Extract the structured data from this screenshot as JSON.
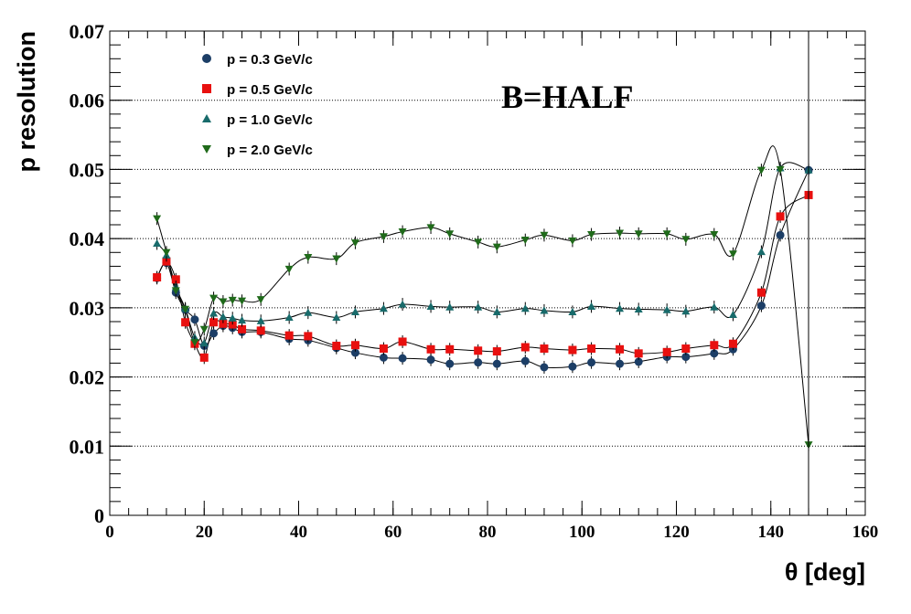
{
  "chart_data": {
    "type": "scatter",
    "title": "",
    "xlabel": "θ [deg]",
    "ylabel": "p resolution",
    "xlim": [
      0,
      160
    ],
    "ylim": [
      0,
      0.07
    ],
    "x_ticks": [
      0,
      20,
      40,
      60,
      80,
      100,
      120,
      140,
      160
    ],
    "y_ticks": [
      0,
      0.01,
      0.02,
      0.03,
      0.04,
      0.05,
      0.06,
      0.07
    ],
    "x_tick_labels": [
      "0",
      "20",
      "40",
      "60",
      "80",
      "100",
      "120",
      "140",
      "160"
    ],
    "y_tick_labels": [
      "0",
      "0.01",
      "0.02",
      "0.03",
      "0.04",
      "0.05",
      "0.06",
      "0.07"
    ],
    "grid": "horizontal dotted",
    "legend_position": "top-left",
    "annotation": "B=HALF",
    "series": [
      {
        "name": "p = 0.3 GeV/c",
        "marker": "circle",
        "color": "#1c3e66",
        "x": [
          10,
          12,
          14,
          16,
          18,
          20,
          22,
          24,
          26,
          28,
          32,
          38,
          42,
          48,
          52,
          58,
          62,
          68,
          72,
          78,
          82,
          88,
          92,
          98,
          102,
          108,
          112,
          118,
          122,
          128,
          132,
          138,
          142,
          148
        ],
        "y": [
          0.0343,
          0.0365,
          0.0322,
          0.0297,
          0.0283,
          0.0245,
          0.0263,
          0.0274,
          0.0271,
          0.0265,
          0.0265,
          0.0255,
          0.0253,
          0.0242,
          0.0235,
          0.0228,
          0.0227,
          0.0225,
          0.0219,
          0.0221,
          0.0219,
          0.0223,
          0.0214,
          0.0215,
          0.0221,
          0.0219,
          0.0222,
          0.0229,
          0.0229,
          0.0234,
          0.024,
          0.0303,
          0.0405,
          0.0499
        ]
      },
      {
        "name": "p = 0.5 GeV/c",
        "marker": "square",
        "color": "#e8100f",
        "x": [
          10,
          12,
          14,
          16,
          18,
          20,
          22,
          24,
          26,
          28,
          32,
          38,
          42,
          48,
          52,
          58,
          62,
          68,
          72,
          78,
          82,
          88,
          92,
          98,
          102,
          108,
          112,
          118,
          122,
          128,
          132,
          138,
          142,
          148
        ],
        "y": [
          0.0344,
          0.0367,
          0.0341,
          0.0279,
          0.0248,
          0.0228,
          0.0279,
          0.0277,
          0.0276,
          0.0269,
          0.0267,
          0.026,
          0.0259,
          0.0245,
          0.0246,
          0.0241,
          0.0251,
          0.024,
          0.024,
          0.0238,
          0.0237,
          0.0243,
          0.0241,
          0.0239,
          0.0241,
          0.024,
          0.0234,
          0.0236,
          0.0241,
          0.0246,
          0.0248,
          0.0322,
          0.0432,
          0.0463
        ]
      },
      {
        "name": "p = 1.0 GeV/c",
        "marker": "triangle-up",
        "color": "#186b6b",
        "x": [
          10,
          12,
          14,
          16,
          18,
          20,
          22,
          24,
          26,
          28,
          32,
          38,
          42,
          48,
          52,
          58,
          62,
          68,
          72,
          78,
          82,
          88,
          92,
          98,
          102,
          108,
          112,
          118,
          122,
          128,
          132,
          138,
          142,
          148
        ],
        "y": [
          0.0393,
          0.0376,
          0.033,
          0.0299,
          0.0257,
          0.0249,
          0.0292,
          0.0287,
          0.0285,
          0.0282,
          0.0281,
          0.0286,
          0.0293,
          0.0286,
          0.0294,
          0.0299,
          0.0305,
          0.0302,
          0.0301,
          0.0301,
          0.0294,
          0.0299,
          0.0296,
          0.0294,
          0.0302,
          0.0299,
          0.0298,
          0.0297,
          0.0295,
          0.0301,
          0.029,
          0.0381,
          0.0502,
          0.0499
        ]
      },
      {
        "name": "p = 2.0 GeV/c",
        "marker": "triangle-down",
        "color": "#1f6a1a",
        "x": [
          10,
          12,
          14,
          16,
          18,
          20,
          22,
          24,
          26,
          28,
          32,
          38,
          42,
          48,
          52,
          58,
          62,
          68,
          72,
          78,
          82,
          88,
          92,
          98,
          102,
          108,
          112,
          118,
          122,
          128,
          132,
          138,
          142,
          148
        ],
        "y": [
          0.0429,
          0.038,
          0.0325,
          0.0298,
          0.025,
          0.0269,
          0.0314,
          0.0309,
          0.0311,
          0.031,
          0.0312,
          0.0356,
          0.0373,
          0.0371,
          0.0394,
          0.0403,
          0.041,
          0.0416,
          0.0407,
          0.0395,
          0.0388,
          0.0398,
          0.0405,
          0.0397,
          0.0406,
          0.0408,
          0.0407,
          0.0407,
          0.0399,
          0.0406,
          0.0378,
          0.0499,
          0.05,
          0.0102
        ]
      }
    ]
  }
}
